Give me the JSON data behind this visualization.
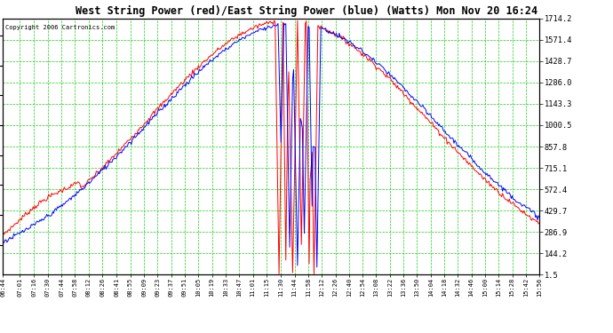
{
  "title": "West String Power (red)/East String Power (blue) (Watts) Mon Nov 20 16:24",
  "copyright": "Copyright 2006 Cartronics.com",
  "bg_color": "#ffffff",
  "plot_bg_color": "#ffffff",
  "grid_color": "#00cc00",
  "line_red": "#ff0000",
  "line_blue": "#0000ff",
  "yticks": [
    1.5,
    144.2,
    286.9,
    429.7,
    572.4,
    715.1,
    857.8,
    1000.5,
    1143.3,
    1286.0,
    1428.7,
    1571.4,
    1714.2
  ],
  "ymin": 1.5,
  "ymax": 1714.2,
  "x_labels": [
    "06:44",
    "07:01",
    "07:16",
    "07:30",
    "07:44",
    "07:58",
    "08:12",
    "08:26",
    "08:41",
    "08:55",
    "09:09",
    "09:23",
    "09:37",
    "09:51",
    "10:05",
    "10:19",
    "10:33",
    "10:47",
    "11:01",
    "11:15",
    "11:30",
    "11:44",
    "11:58",
    "12:12",
    "12:26",
    "12:40",
    "12:54",
    "13:08",
    "13:22",
    "13:36",
    "13:50",
    "14:04",
    "14:18",
    "14:32",
    "14:46",
    "15:00",
    "15:14",
    "15:28",
    "15:42",
    "15:56"
  ]
}
